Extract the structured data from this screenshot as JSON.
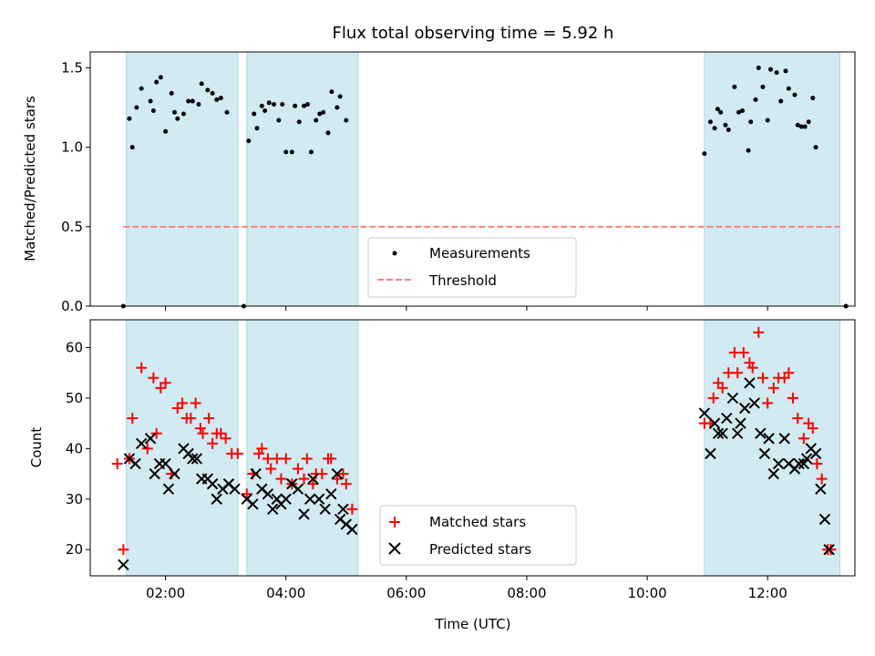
{
  "title": "Flux total observing time = 5.92 h",
  "colors": {
    "span": "#add8e6",
    "threshold": "#ff7f7f",
    "matched": "#ff0000",
    "predicted": "#000000",
    "measure": "#000000"
  },
  "chart_data": [
    {
      "type": "scatter",
      "name": "ratio",
      "ylabel": "Matched/Predicted stars",
      "xlim": [
        0.75,
        13.45
      ],
      "ylim": [
        0,
        1.6
      ],
      "yticks": [
        {
          "v": 0,
          "label": "0.0"
        },
        {
          "v": 0.5,
          "label": "0.5"
        },
        {
          "v": 1.0,
          "label": "1.0"
        },
        {
          "v": 1.5,
          "label": "1.5"
        }
      ],
      "spans": [
        [
          1.35,
          3.2
        ],
        [
          3.35,
          5.2
        ],
        [
          10.95,
          13.2
        ]
      ],
      "threshold": {
        "y": 0.5,
        "x": [
          1.3,
          13.2
        ]
      },
      "legend": [
        "Measurements",
        "Threshold"
      ],
      "legend_position": "lower center",
      "series": [
        {
          "name": "Measurements",
          "points": [
            [
              1.3,
              0.0
            ],
            [
              1.4,
              1.18
            ],
            [
              1.45,
              1.0
            ],
            [
              1.52,
              1.25
            ],
            [
              1.6,
              1.37
            ],
            [
              1.75,
              1.29
            ],
            [
              1.8,
              1.23
            ],
            [
              1.85,
              1.41
            ],
            [
              1.92,
              1.44
            ],
            [
              2.0,
              1.1
            ],
            [
              2.1,
              1.34
            ],
            [
              2.15,
              1.22
            ],
            [
              2.2,
              1.18
            ],
            [
              2.3,
              1.21
            ],
            [
              2.38,
              1.29
            ],
            [
              2.45,
              1.29
            ],
            [
              2.55,
              1.27
            ],
            [
              2.6,
              1.4
            ],
            [
              2.7,
              1.36
            ],
            [
              2.78,
              1.34
            ],
            [
              2.85,
              1.3
            ],
            [
              2.92,
              1.31
            ],
            [
              3.02,
              1.22
            ],
            [
              3.3,
              0.0
            ],
            [
              3.38,
              1.04
            ],
            [
              3.47,
              1.21
            ],
            [
              3.52,
              1.12
            ],
            [
              3.6,
              1.26
            ],
            [
              3.65,
              1.23
            ],
            [
              3.72,
              1.28
            ],
            [
              3.8,
              1.27
            ],
            [
              3.88,
              1.17
            ],
            [
              3.94,
              1.27
            ],
            [
              4.0,
              0.97
            ],
            [
              4.1,
              0.97
            ],
            [
              4.15,
              1.26
            ],
            [
              4.22,
              1.16
            ],
            [
              4.3,
              1.26
            ],
            [
              4.36,
              1.27
            ],
            [
              4.42,
              0.97
            ],
            [
              4.5,
              1.17
            ],
            [
              4.56,
              1.21
            ],
            [
              4.62,
              1.22
            ],
            [
              4.7,
              1.09
            ],
            [
              4.76,
              1.35
            ],
            [
              4.85,
              1.25
            ],
            [
              4.9,
              1.32
            ],
            [
              5.0,
              1.17
            ],
            [
              10.95,
              0.96
            ],
            [
              11.05,
              1.16
            ],
            [
              11.12,
              1.12
            ],
            [
              11.17,
              1.24
            ],
            [
              11.22,
              1.22
            ],
            [
              11.3,
              1.14
            ],
            [
              11.35,
              1.11
            ],
            [
              11.45,
              1.38
            ],
            [
              11.52,
              1.22
            ],
            [
              11.58,
              1.23
            ],
            [
              11.68,
              0.98
            ],
            [
              11.72,
              1.16
            ],
            [
              11.8,
              1.3
            ],
            [
              11.85,
              1.5
            ],
            [
              11.92,
              1.38
            ],
            [
              12.0,
              1.17
            ],
            [
              12.05,
              1.49
            ],
            [
              12.15,
              1.47
            ],
            [
              12.22,
              1.29
            ],
            [
              12.3,
              1.48
            ],
            [
              12.35,
              1.37
            ],
            [
              12.45,
              1.33
            ],
            [
              12.5,
              1.14
            ],
            [
              12.56,
              1.13
            ],
            [
              12.62,
              1.13
            ],
            [
              12.68,
              1.16
            ],
            [
              12.75,
              1.31
            ],
            [
              12.8,
              1.0
            ],
            [
              13.3,
              0.0
            ]
          ]
        }
      ]
    },
    {
      "type": "scatter",
      "name": "counts",
      "xlabel": "Time (UTC)",
      "ylabel": "Count",
      "xlim": [
        0.75,
        13.45
      ],
      "ylim": [
        14.8,
        65.5
      ],
      "yticks": [
        {
          "v": 20,
          "label": "20"
        },
        {
          "v": 30,
          "label": "30"
        },
        {
          "v": 40,
          "label": "40"
        },
        {
          "v": 50,
          "label": "50"
        },
        {
          "v": 60,
          "label": "60"
        }
      ],
      "xticks": [
        {
          "v": 2,
          "label": "02:00"
        },
        {
          "v": 4,
          "label": "04:00"
        },
        {
          "v": 6,
          "label": "06:00"
        },
        {
          "v": 8,
          "label": "08:00"
        },
        {
          "v": 10,
          "label": "10:00"
        },
        {
          "v": 12,
          "label": "12:00"
        }
      ],
      "spans": [
        [
          1.35,
          3.2
        ],
        [
          3.35,
          5.2
        ],
        [
          10.95,
          13.2
        ]
      ],
      "legend": [
        "Matched stars",
        "Predicted stars"
      ],
      "legend_position": "lower center",
      "series": [
        {
          "name": "Matched stars",
          "marker": "+",
          "points": [
            [
              1.2,
              37
            ],
            [
              1.3,
              20
            ],
            [
              1.4,
              38
            ],
            [
              1.45,
              46
            ],
            [
              1.6,
              56
            ],
            [
              1.7,
              40
            ],
            [
              1.8,
              54
            ],
            [
              1.85,
              43
            ],
            [
              1.92,
              52
            ],
            [
              2.0,
              53
            ],
            [
              2.1,
              35
            ],
            [
              2.2,
              48
            ],
            [
              2.28,
              49
            ],
            [
              2.35,
              46
            ],
            [
              2.42,
              46
            ],
            [
              2.5,
              49
            ],
            [
              2.58,
              44
            ],
            [
              2.62,
              43
            ],
            [
              2.72,
              46
            ],
            [
              2.78,
              41
            ],
            [
              2.85,
              43
            ],
            [
              2.92,
              43
            ],
            [
              3.0,
              42
            ],
            [
              3.1,
              39
            ],
            [
              3.2,
              39
            ],
            [
              3.35,
              31
            ],
            [
              3.45,
              35
            ],
            [
              3.55,
              39
            ],
            [
              3.6,
              40
            ],
            [
              3.7,
              38
            ],
            [
              3.75,
              36
            ],
            [
              3.85,
              38
            ],
            [
              3.92,
              34
            ],
            [
              4.0,
              38
            ],
            [
              4.1,
              33
            ],
            [
              4.2,
              36
            ],
            [
              4.3,
              34
            ],
            [
              4.35,
              38
            ],
            [
              4.45,
              33
            ],
            [
              4.5,
              35
            ],
            [
              4.6,
              35
            ],
            [
              4.7,
              38
            ],
            [
              4.75,
              38
            ],
            [
              4.85,
              34
            ],
            [
              4.95,
              35
            ],
            [
              5.0,
              33
            ],
            [
              5.1,
              28
            ],
            [
              10.95,
              45
            ],
            [
              11.05,
              45
            ],
            [
              11.1,
              50
            ],
            [
              11.18,
              53
            ],
            [
              11.25,
              52
            ],
            [
              11.35,
              55
            ],
            [
              11.45,
              59
            ],
            [
              11.5,
              55
            ],
            [
              11.6,
              59
            ],
            [
              11.7,
              57
            ],
            [
              11.75,
              56
            ],
            [
              11.85,
              63
            ],
            [
              11.92,
              54
            ],
            [
              12.0,
              49
            ],
            [
              12.1,
              52
            ],
            [
              12.18,
              54
            ],
            [
              12.28,
              54
            ],
            [
              12.35,
              55
            ],
            [
              12.42,
              50
            ],
            [
              12.5,
              46
            ],
            [
              12.6,
              42
            ],
            [
              12.68,
              45
            ],
            [
              12.75,
              44
            ],
            [
              12.82,
              37
            ],
            [
              12.9,
              34
            ],
            [
              13.0,
              20
            ],
            [
              13.05,
              20
            ]
          ]
        },
        {
          "name": "Predicted stars",
          "marker": "x",
          "points": [
            [
              1.3,
              17
            ],
            [
              1.4,
              38
            ],
            [
              1.5,
              37
            ],
            [
              1.6,
              41
            ],
            [
              1.75,
              42
            ],
            [
              1.82,
              35
            ],
            [
              1.9,
              37
            ],
            [
              2.0,
              37
            ],
            [
              2.05,
              32
            ],
            [
              2.15,
              35
            ],
            [
              2.3,
              40
            ],
            [
              2.38,
              39
            ],
            [
              2.45,
              38
            ],
            [
              2.52,
              38
            ],
            [
              2.6,
              34
            ],
            [
              2.7,
              34
            ],
            [
              2.78,
              33
            ],
            [
              2.85,
              30
            ],
            [
              2.95,
              32
            ],
            [
              3.05,
              33
            ],
            [
              3.15,
              32
            ],
            [
              3.35,
              30
            ],
            [
              3.45,
              29
            ],
            [
              3.5,
              35
            ],
            [
              3.6,
              32
            ],
            [
              3.7,
              31
            ],
            [
              3.78,
              28
            ],
            [
              3.85,
              30
            ],
            [
              3.92,
              29
            ],
            [
              4.0,
              30
            ],
            [
              4.1,
              33
            ],
            [
              4.2,
              32
            ],
            [
              4.3,
              27
            ],
            [
              4.4,
              30
            ],
            [
              4.45,
              34
            ],
            [
              4.55,
              30
            ],
            [
              4.65,
              28
            ],
            [
              4.75,
              31
            ],
            [
              4.85,
              35
            ],
            [
              4.9,
              26
            ],
            [
              4.95,
              28
            ],
            [
              5.0,
              25
            ],
            [
              5.1,
              24
            ],
            [
              10.95,
              47
            ],
            [
              11.05,
              39
            ],
            [
              11.12,
              45
            ],
            [
              11.18,
              43
            ],
            [
              11.25,
              43
            ],
            [
              11.32,
              46
            ],
            [
              11.42,
              50
            ],
            [
              11.5,
              43
            ],
            [
              11.55,
              45
            ],
            [
              11.62,
              48
            ],
            [
              11.7,
              53
            ],
            [
              11.78,
              49
            ],
            [
              11.88,
              43
            ],
            [
              11.95,
              39
            ],
            [
              12.02,
              42
            ],
            [
              12.1,
              35
            ],
            [
              12.18,
              37
            ],
            [
              12.28,
              42
            ],
            [
              12.35,
              37
            ],
            [
              12.45,
              36
            ],
            [
              12.52,
              37
            ],
            [
              12.6,
              37
            ],
            [
              12.65,
              38
            ],
            [
              12.72,
              40
            ],
            [
              12.8,
              39
            ],
            [
              12.88,
              32
            ],
            [
              12.95,
              26
            ],
            [
              13.02,
              20
            ]
          ]
        }
      ]
    }
  ]
}
